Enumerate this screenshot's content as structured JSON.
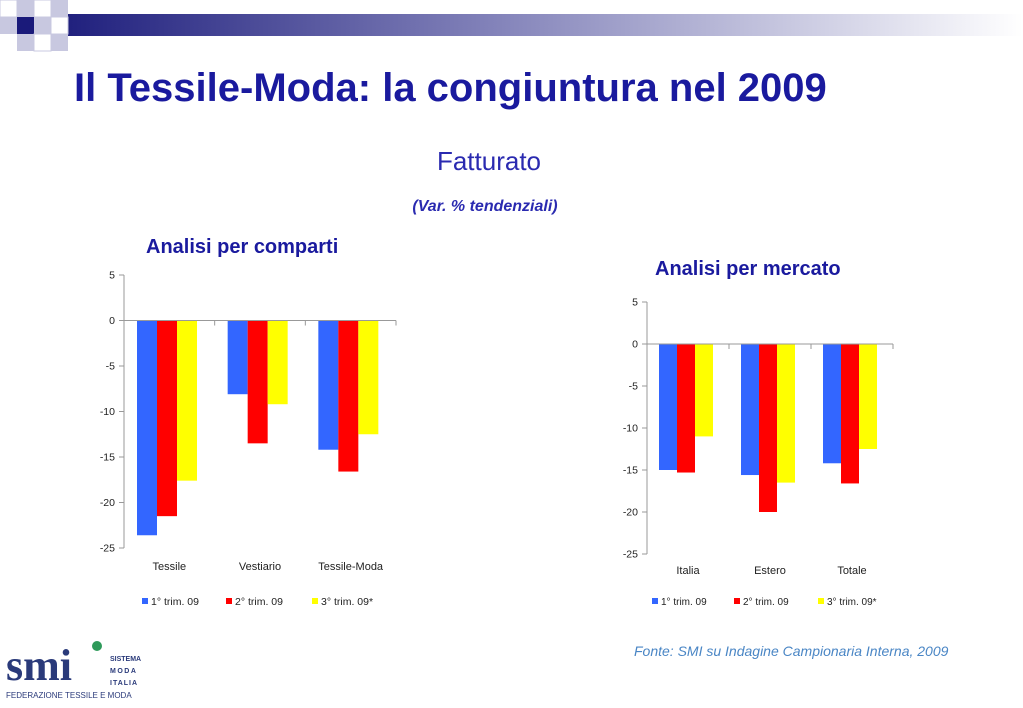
{
  "slide": {
    "title": "Il Tessile-Moda: la congiuntura nel 2009",
    "subtitle": "Fatturato",
    "subnote": "(Var. % tendenziali)",
    "source": "Fonte: SMI su Indagine Campionaria Interna, 2009"
  },
  "logo": {
    "mark": "smi",
    "line1": "SISTEMA",
    "line2": "MODA",
    "line3": "ITALIA",
    "tagline": "FEDERAZIONE TESSILE E MODA"
  },
  "colors": {
    "series": [
      "#3366ff",
      "#ff0000",
      "#ffff00"
    ],
    "title": "#1a1a9e",
    "source": "#4a86c5"
  },
  "chart_data": [
    {
      "type": "bar",
      "title": "Analisi per comparti",
      "categories": [
        "Tessile",
        "Vestiario",
        "Tessile-Moda"
      ],
      "series": [
        {
          "name": "1° trim. 09",
          "values": [
            -23.6,
            -8.1,
            -14.2
          ]
        },
        {
          "name": "2° trim. 09",
          "values": [
            -21.5,
            -13.5,
            -16.6
          ]
        },
        {
          "name": "3° trim. 09*",
          "values": [
            -17.6,
            -9.2,
            -12.5
          ]
        }
      ],
      "ylim": [
        -25,
        5
      ],
      "yticks": [
        5,
        0,
        -5,
        -10,
        -15,
        -20,
        -25
      ],
      "legend": "bottom",
      "grid": false
    },
    {
      "type": "bar",
      "title": "Analisi per mercato",
      "categories": [
        "Italia",
        "Estero",
        "Totale"
      ],
      "series": [
        {
          "name": "1° trim. 09",
          "values": [
            -15.0,
            -15.6,
            -14.2
          ]
        },
        {
          "name": "2° trim. 09",
          "values": [
            -15.3,
            -20.0,
            -16.6
          ]
        },
        {
          "name": "3° trim. 09*",
          "values": [
            -11.0,
            -16.5,
            -12.5
          ]
        }
      ],
      "ylim": [
        -25,
        5
      ],
      "yticks": [
        5,
        0,
        -5,
        -10,
        -15,
        -20,
        -25
      ],
      "legend": "bottom",
      "grid": false
    }
  ]
}
